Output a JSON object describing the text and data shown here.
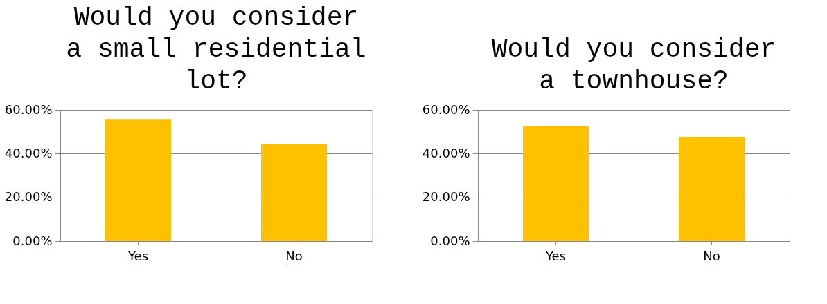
{
  "chart_data": [
    {
      "type": "bar",
      "title": "Would you consider a small residential lot?",
      "categories": [
        "Yes",
        "No"
      ],
      "values": [
        55.8,
        44.2
      ],
      "color": "#ffc000",
      "ylim": [
        0,
        60
      ],
      "yticks": [
        {
          "value": 0,
          "label": "0.00%"
        },
        {
          "value": 20,
          "label": "20.00%"
        },
        {
          "value": 40,
          "label": "40.00%"
        },
        {
          "value": 60,
          "label": "60.00%"
        }
      ],
      "grid": "y"
    },
    {
      "type": "bar",
      "title": "Would you consider a townhouse?",
      "categories": [
        "Yes",
        "No"
      ],
      "values": [
        52.5,
        47.5
      ],
      "color": "#ffc000",
      "ylim": [
        0,
        60
      ],
      "yticks": [
        {
          "value": 0,
          "label": "0.00%"
        },
        {
          "value": 20,
          "label": "20.00%"
        },
        {
          "value": 40,
          "label": "40.00%"
        },
        {
          "value": 60,
          "label": "60.00%"
        }
      ],
      "grid": "y"
    }
  ]
}
